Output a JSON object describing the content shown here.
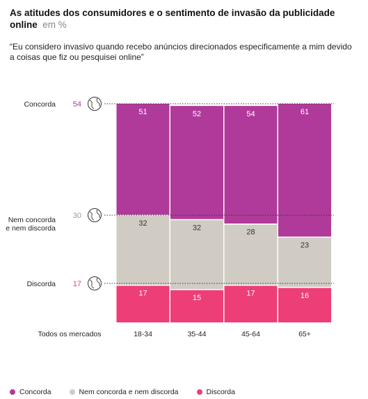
{
  "title": {
    "main": "As atitudes dos consumidores e o sentimento de invasão da publicidade online",
    "unit": "em %"
  },
  "subtitle": "“Eu considero invasivo quando recebo anúncios direcionados especificamente a mim devido a coisas que fiz ou pesquisei online”",
  "colors": {
    "concorda": "#b03a9a",
    "neutro": "#d0ccc4",
    "discorda": "#ee3e78"
  },
  "chart_data": {
    "type": "bar",
    "stacked": true,
    "categories": [
      "18-34",
      "35-44",
      "45-64",
      "65+"
    ],
    "xlabel_left": "Todos os mercados",
    "series": [
      {
        "name": "Discorda",
        "values": [
          17,
          15,
          17,
          16
        ]
      },
      {
        "name": "Nem concorda e nem discorda",
        "values": [
          32,
          32,
          28,
          23
        ]
      },
      {
        "name": "Concorda",
        "values": [
          51,
          52,
          54,
          61
        ]
      }
    ],
    "overall": [
      {
        "label": "Concorda",
        "value": 54
      },
      {
        "label": "Nem concorda e nem discorda",
        "value": 30
      },
      {
        "label": "Discorda",
        "value": 17
      }
    ],
    "ylim": [
      0,
      100
    ],
    "legend_position": "bottom-left"
  }
}
